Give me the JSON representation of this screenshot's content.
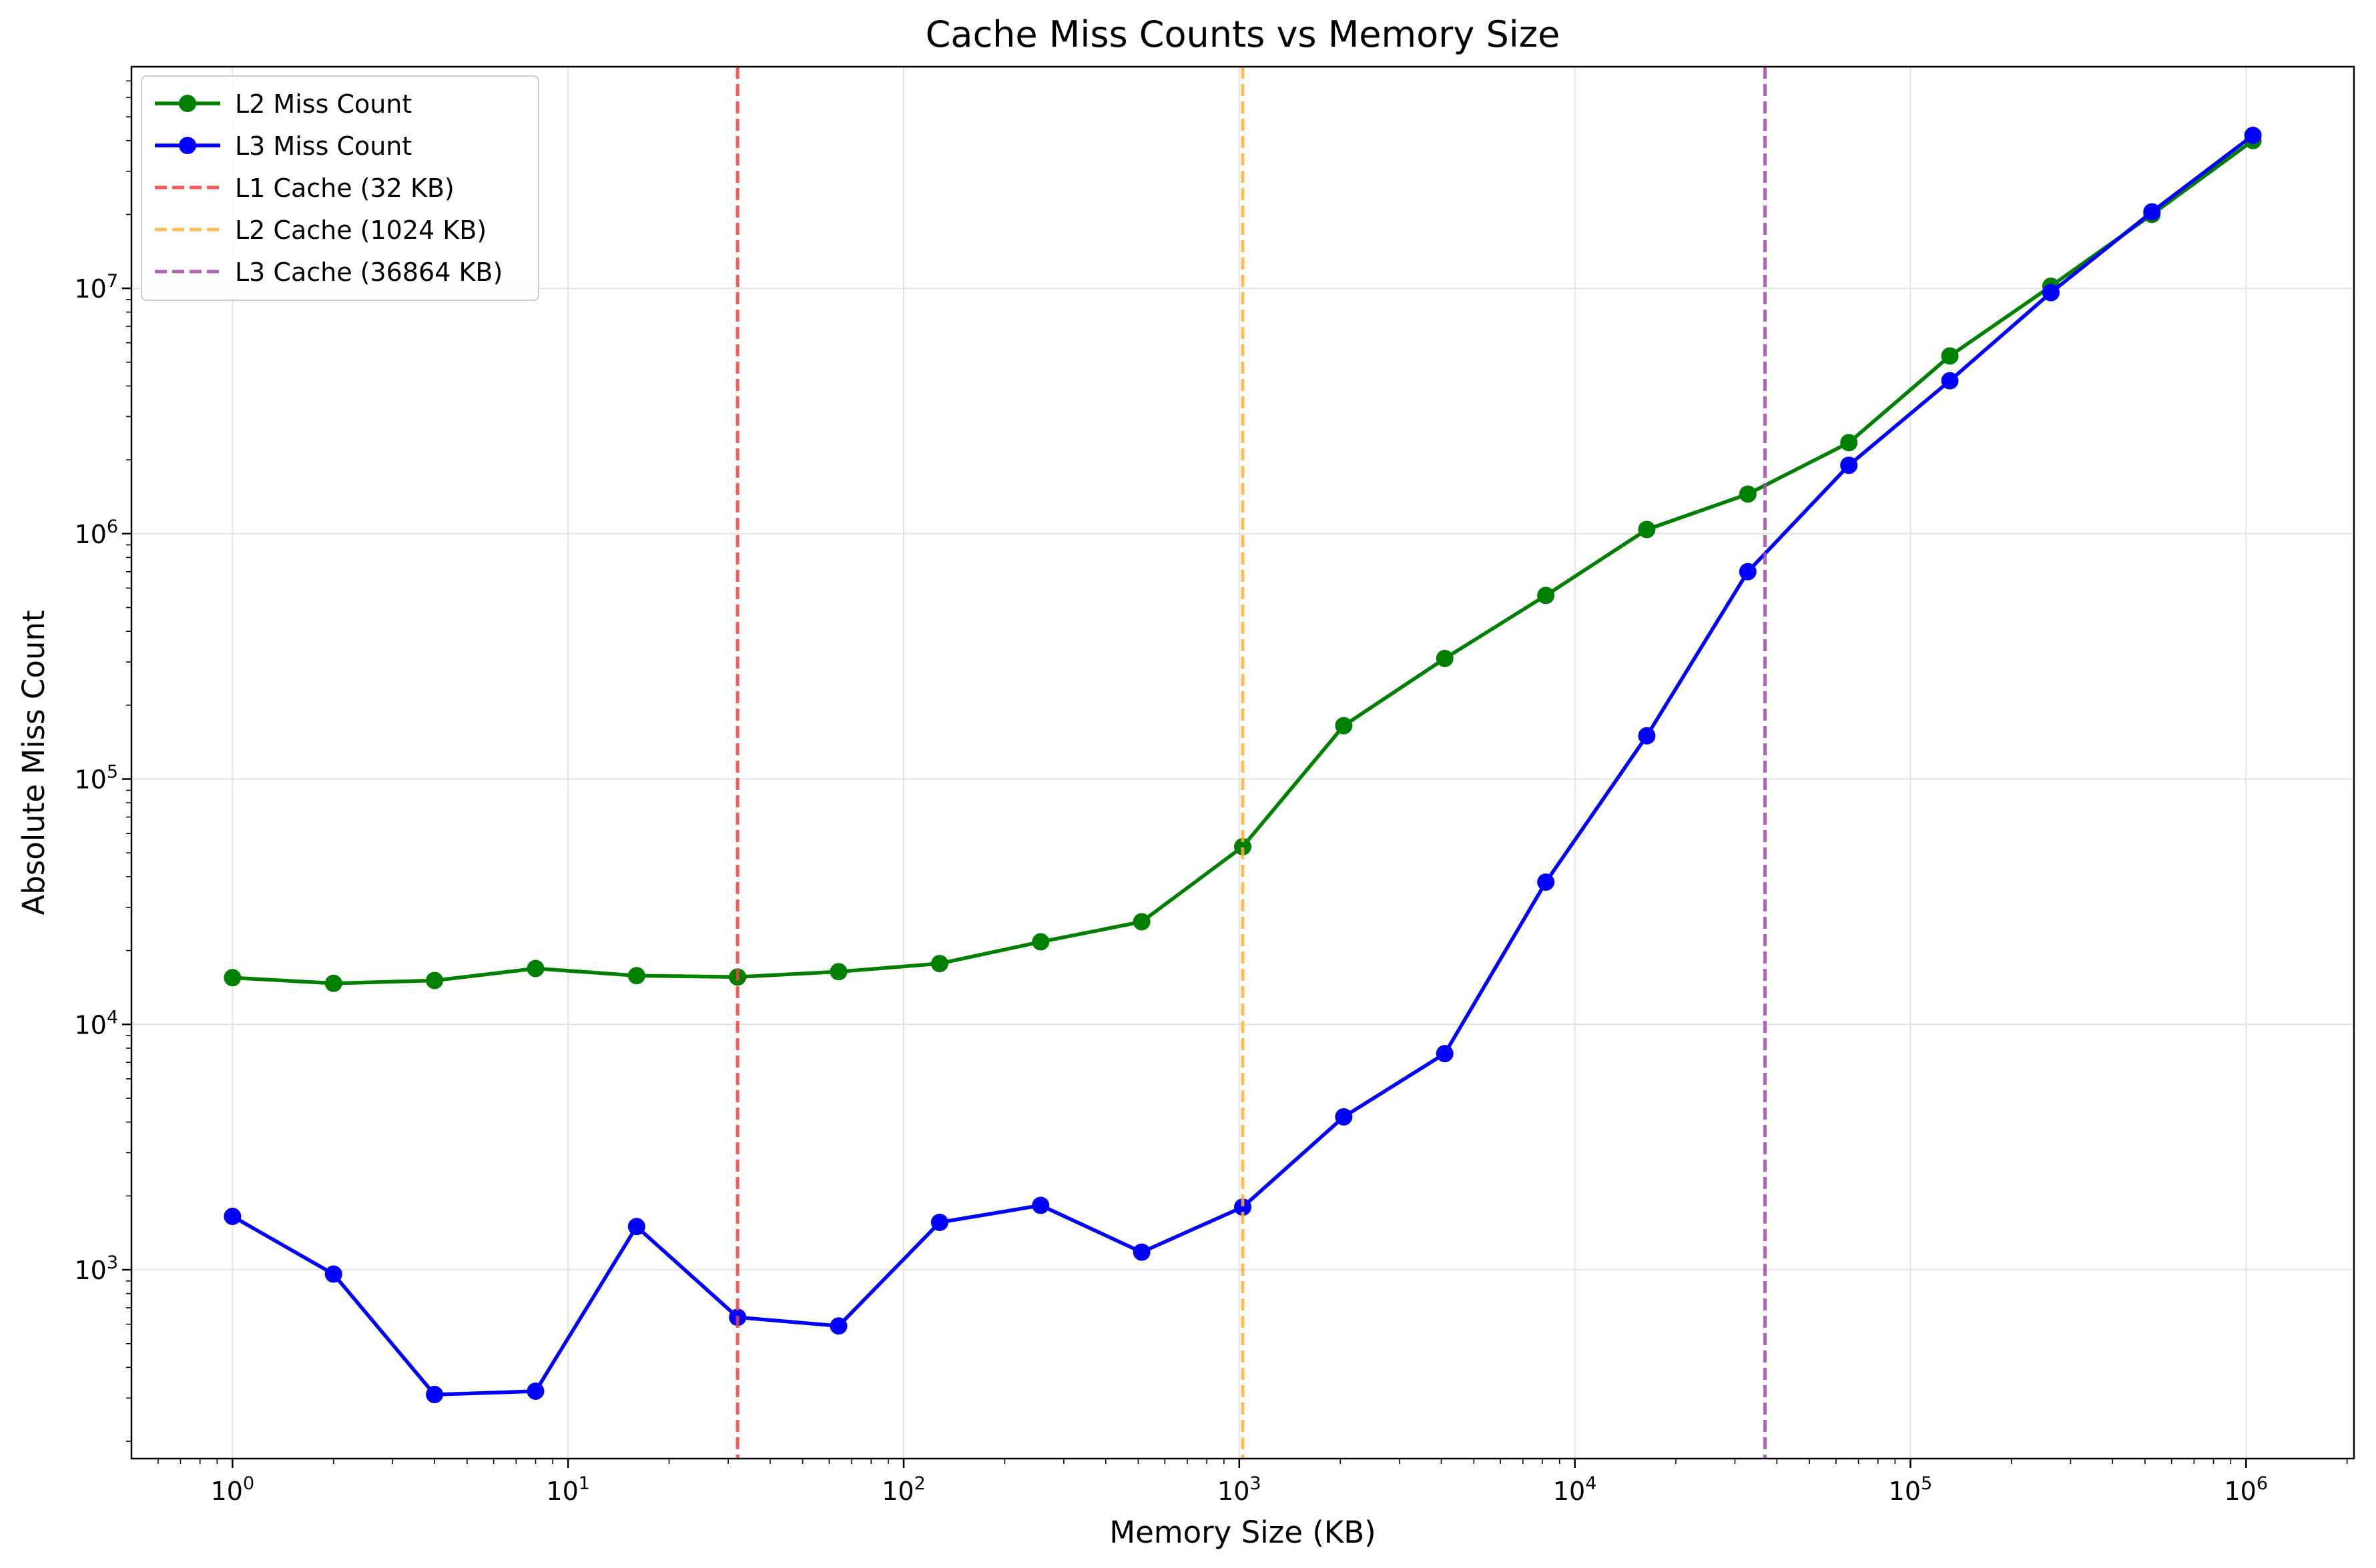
{
  "chart_data": {
    "type": "line",
    "title": "Cache Miss Counts vs Memory Size",
    "xlabel": "Memory Size (KB)",
    "ylabel": "Absolute Miss Count",
    "xscale": "log",
    "yscale": "log",
    "xlim": [
      0.5,
      2097152
    ],
    "ylim": [
      170,
      80000000
    ],
    "grid": true,
    "legend_position": "top-left",
    "x_ticks": [
      {
        "base": "10",
        "exp": "0",
        "value": 1
      },
      {
        "base": "10",
        "exp": "1",
        "value": 10
      },
      {
        "base": "10",
        "exp": "2",
        "value": 100
      },
      {
        "base": "10",
        "exp": "3",
        "value": 1000
      },
      {
        "base": "10",
        "exp": "4",
        "value": 10000
      },
      {
        "base": "10",
        "exp": "5",
        "value": 100000
      },
      {
        "base": "10",
        "exp": "6",
        "value": 1000000
      }
    ],
    "y_ticks": [
      {
        "base": "10",
        "exp": "3",
        "value": 1000
      },
      {
        "base": "10",
        "exp": "4",
        "value": 10000
      },
      {
        "base": "10",
        "exp": "5",
        "value": 100000
      },
      {
        "base": "10",
        "exp": "6",
        "value": 1000000
      },
      {
        "base": "10",
        "exp": "7",
        "value": 10000000
      }
    ],
    "x": [
      1,
      2,
      4,
      8,
      16,
      32,
      64,
      128,
      256,
      512,
      1024,
      2048,
      4096,
      8192,
      16384,
      32768,
      65536,
      131072,
      262144,
      524288,
      1048576
    ],
    "series": [
      {
        "name": "L2 Miss Count",
        "color": "#008000",
        "marker": "circle",
        "values": [
          15500,
          14700,
          15100,
          16900,
          15800,
          15600,
          16400,
          17700,
          21700,
          26200,
          53000,
          165000,
          310000,
          560000,
          1040000,
          1450000,
          2350000,
          5300000,
          10200000,
          20000000,
          40000000
        ]
      },
      {
        "name": "L3 Miss Count",
        "color": "#0000ff",
        "marker": "circle",
        "values": [
          1650,
          960,
          310,
          320,
          1500,
          640,
          590,
          1560,
          1830,
          1180,
          1800,
          4200,
          7600,
          38000,
          150000,
          700000,
          1900000,
          4200000,
          9600000,
          20500000,
          42000000
        ]
      }
    ],
    "vlines": [
      {
        "name": "L1 Cache (32 KB)",
        "x": 32,
        "color": "#ff3b3b"
      },
      {
        "name": "L2 Cache (1024 KB)",
        "x": 1024,
        "color": "#ffb13d"
      },
      {
        "name": "L3 Cache (36864 KB)",
        "x": 36864,
        "color": "#a44aad"
      }
    ]
  }
}
